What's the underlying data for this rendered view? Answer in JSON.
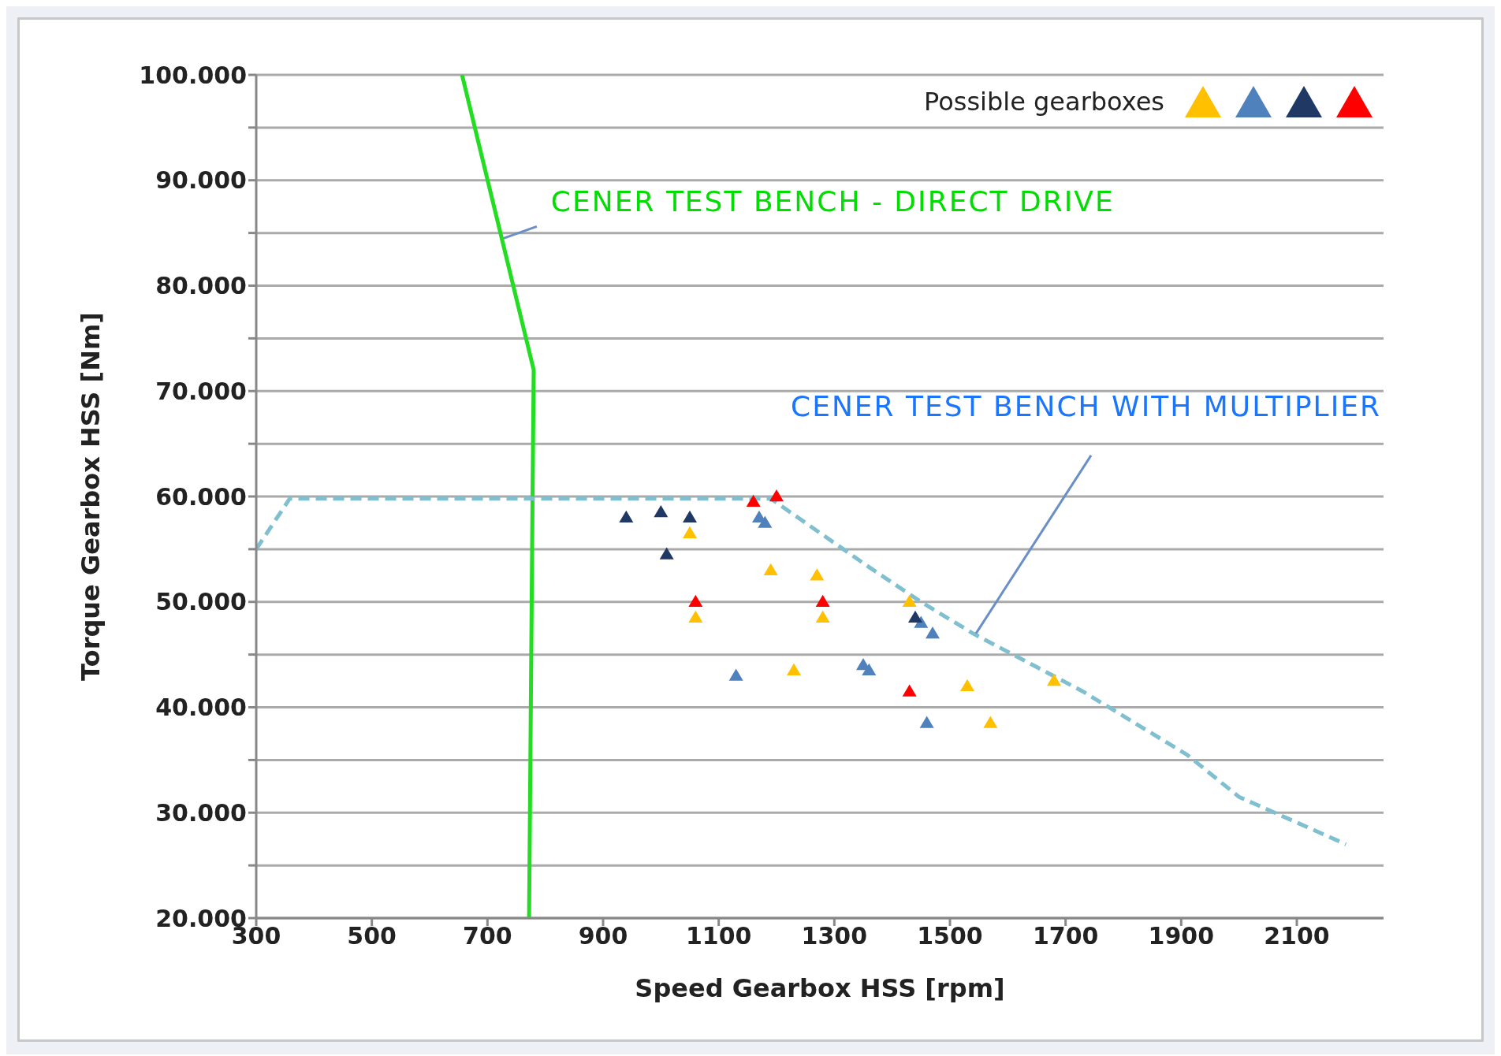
{
  "chart_data": {
    "type": "scatter",
    "xlabel": "Speed Gearbox HSS [rpm]",
    "ylabel": "Torque Gearbox HSS [Nm]",
    "legend_title": "Possible gearboxes",
    "grid": "y",
    "marker": "triangle",
    "xlim": [
      300,
      2250
    ],
    "xticks": [
      300,
      500,
      700,
      900,
      1100,
      1300,
      1500,
      1700,
      1900,
      2100
    ],
    "ylim": [
      20000,
      100000
    ],
    "yticks": [
      {
        "value": 20000,
        "label": "20.000"
      },
      {
        "value": 25000,
        "label": null
      },
      {
        "value": 30000,
        "label": "30.000"
      },
      {
        "value": 35000,
        "label": null
      },
      {
        "value": 40000,
        "label": "40.000"
      },
      {
        "value": 45000,
        "label": null
      },
      {
        "value": 50000,
        "label": "50.000"
      },
      {
        "value": 55000,
        "label": null
      },
      {
        "value": 60000,
        "label": "60.000"
      },
      {
        "value": 65000,
        "label": null
      },
      {
        "value": 70000,
        "label": "70.000"
      },
      {
        "value": 75000,
        "label": null
      },
      {
        "value": 80000,
        "label": "80.000"
      },
      {
        "value": 85000,
        "label": null
      },
      {
        "value": 90000,
        "label": "90.000"
      },
      {
        "value": 95000,
        "label": null
      },
      {
        "value": 100000,
        "label": "100.000"
      }
    ],
    "series": [
      {
        "color": "#ffc000",
        "x": [
          1050,
          1190,
          1270,
          1060,
          1280,
          1230,
          1430,
          1530,
          1680,
          1570
        ],
        "values": [
          56500,
          53000,
          52500,
          48500,
          48500,
          43500,
          50000,
          42000,
          42500,
          38500
        ]
      },
      {
        "color": "#4f81bd",
        "x": [
          1170,
          1180,
          1130,
          1350,
          1360,
          1450,
          1470,
          1460
        ],
        "values": [
          58000,
          57500,
          43000,
          44000,
          43500,
          48000,
          47000,
          38500
        ]
      },
      {
        "color": "#1f3864",
        "x": [
          940,
          1000,
          1050,
          1010,
          1440
        ],
        "values": [
          58000,
          58500,
          58000,
          54500,
          48500
        ]
      },
      {
        "color": "#ff0000",
        "x": [
          1160,
          1200,
          1060,
          1280,
          1430
        ],
        "values": [
          59500,
          60000,
          50000,
          50000,
          41500
        ]
      },
      {
        "type": "line",
        "color": "#22dd22",
        "line_style": "solid",
        "marker": "none",
        "x": [
          656,
          780,
          778,
          772
        ],
        "values": [
          100000,
          72000,
          60000,
          20000
        ]
      },
      {
        "type": "line",
        "color": "#7fbfd0",
        "line_style": "dashed",
        "marker": "none",
        "x": [
          300,
          358,
          1190,
          1360,
          1450,
          1540,
          1730,
          1910,
          2000,
          2185
        ],
        "values": [
          55000,
          59800,
          59800,
          53300,
          50000,
          47000,
          41500,
          35500,
          31500,
          27000
        ]
      }
    ],
    "annotations": [
      {
        "text": "CENER TEST BENCH - DIRECT DRIVE",
        "x": 728,
        "y": 84500
      },
      {
        "text": "CENER TEST BENCH WITH MULTIPLIER",
        "x": 1545,
        "y": 47000
      }
    ]
  }
}
